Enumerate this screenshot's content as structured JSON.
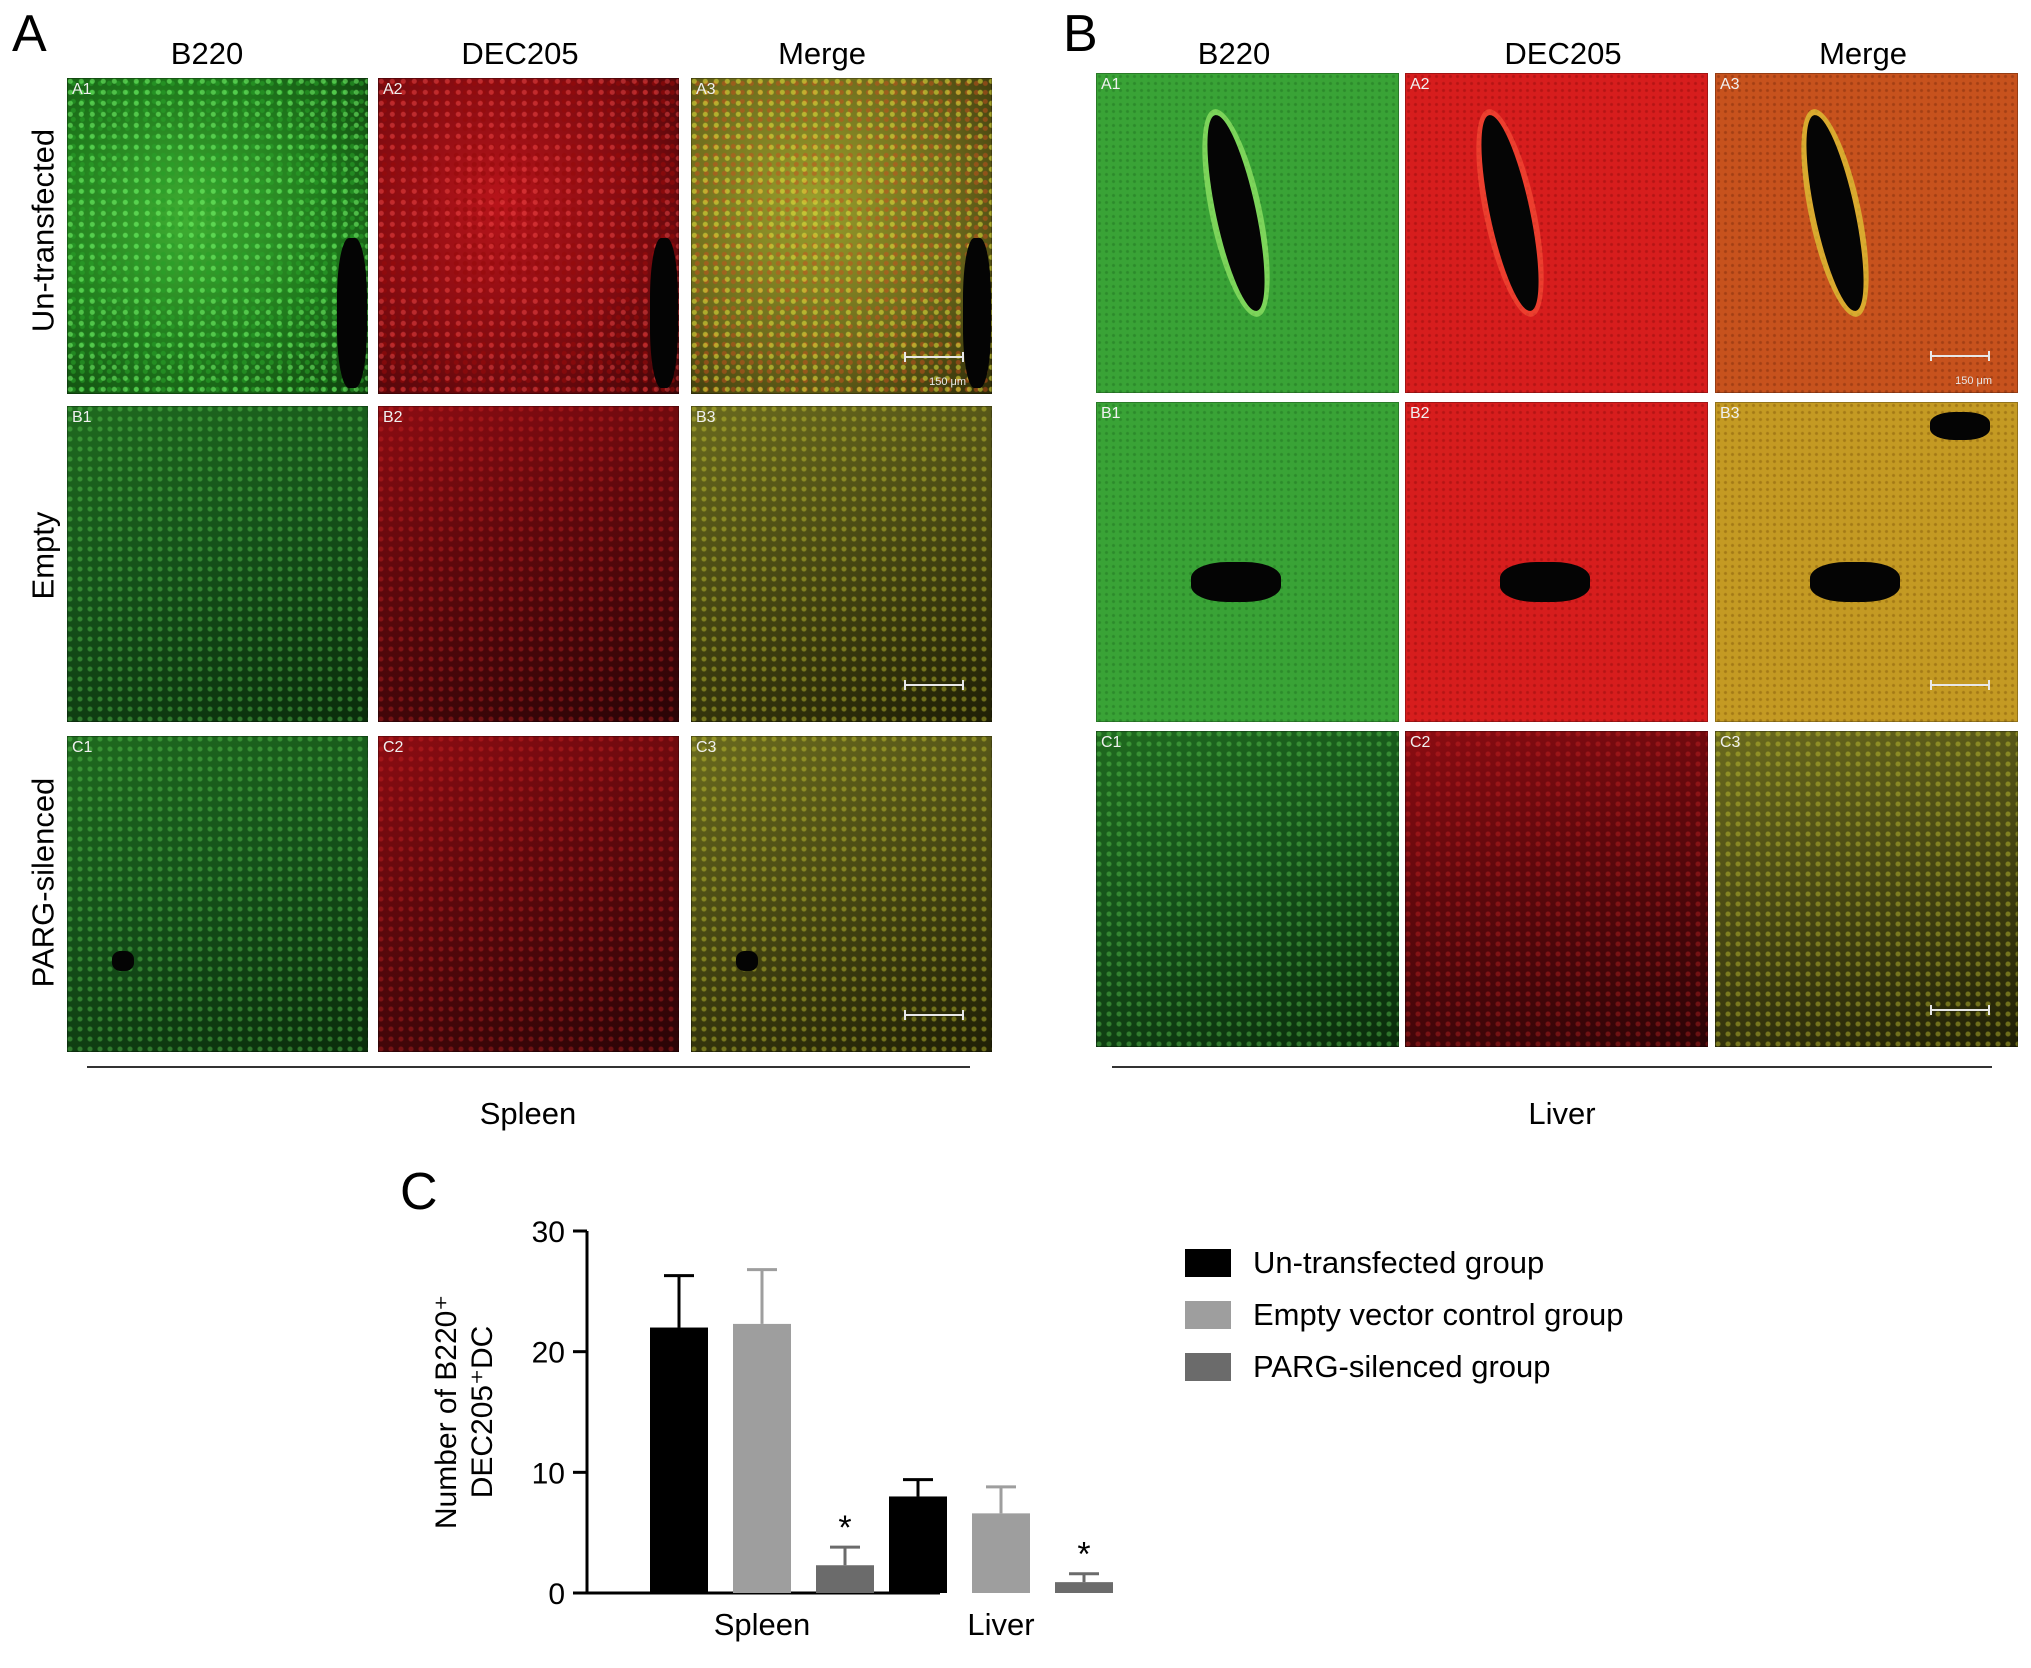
{
  "panel_a": {
    "letter": "A",
    "columns": [
      "B220",
      "DEC205",
      "Merge"
    ],
    "rows": [
      "Un-transfected",
      "Empty",
      "PARG-silenced"
    ],
    "tags": [
      [
        "A1",
        "A2",
        "A3"
      ],
      [
        "B1",
        "B2",
        "B3"
      ],
      [
        "C1",
        "C2",
        "C3"
      ]
    ],
    "scale_label": "150 μm",
    "tissue": "Spleen"
  },
  "panel_b": {
    "letter": "B",
    "columns": [
      "B220",
      "DEC205",
      "Merge"
    ],
    "tags": [
      [
        "A1",
        "A2",
        "A3"
      ],
      [
        "B1",
        "B2",
        "B3"
      ],
      [
        "C1",
        "C2",
        "C3"
      ]
    ],
    "scale_label": "150 μm",
    "tissue": "Liver"
  },
  "panel_c": {
    "letter": "C"
  },
  "chart_data": {
    "type": "bar",
    "categories": [
      "Spleen",
      "Liver"
    ],
    "ylabel_line1": "Number of B220⁺",
    "ylabel_line2": "DEC205⁺DC",
    "ylim": [
      0,
      30
    ],
    "yticks": [
      0,
      10,
      20,
      30
    ],
    "series": [
      {
        "name": "Un-transfected group",
        "color": "#000000",
        "values": [
          22.0,
          8.0
        ],
        "errors": [
          4.3,
          1.4
        ]
      },
      {
        "name": "Empty vector control group",
        "color": "#9e9e9e",
        "values": [
          22.3,
          6.6
        ],
        "errors": [
          4.5,
          2.2
        ]
      },
      {
        "name": "PARG-silenced group",
        "color": "#6b6b6b",
        "values": [
          2.3,
          0.9
        ],
        "errors": [
          1.5,
          0.7
        ]
      }
    ],
    "significance": [
      "*",
      "*"
    ],
    "significance_series": 2
  }
}
